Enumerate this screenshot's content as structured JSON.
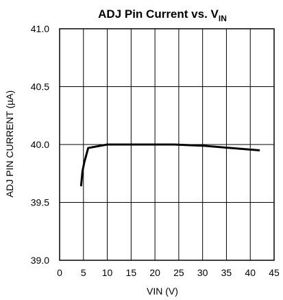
{
  "chart_data": {
    "type": "line",
    "title": {
      "main": "ADJ Pin Current vs. V",
      "subscript": "IN"
    },
    "xlabel": "VIN (V)",
    "ylabel": "ADJ PIN CURRENT (µA)",
    "xlim": [
      0,
      45
    ],
    "ylim": [
      39.0,
      41.0
    ],
    "x_ticks": [
      0,
      5,
      10,
      15,
      20,
      25,
      30,
      35,
      40,
      45
    ],
    "x_tick_labels": [
      "0",
      "5",
      "10",
      "15",
      "20",
      "25",
      "30",
      "35",
      "40",
      "45"
    ],
    "y_ticks": [
      39.0,
      39.5,
      40.0,
      40.5,
      41.0
    ],
    "y_tick_labels": [
      "39.0",
      "39.5",
      "40.0",
      "40.5",
      "41.0"
    ],
    "grid": true,
    "series": [
      {
        "x": [
          4.5,
          4.8,
          5.2,
          6.0,
          10.0,
          15.0,
          20.0,
          24.0,
          30.0,
          36.0,
          42.0
        ],
        "y": [
          39.64,
          39.77,
          39.85,
          39.97,
          40.0,
          40.0,
          40.0,
          40.0,
          39.99,
          39.97,
          39.95
        ],
        "color": "#000000"
      }
    ]
  }
}
